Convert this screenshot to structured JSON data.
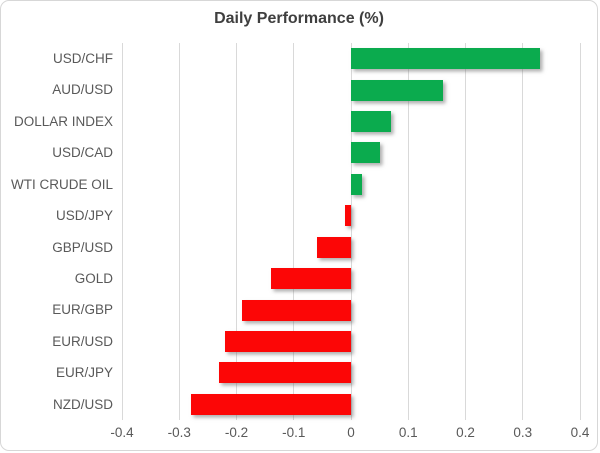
{
  "chart": {
    "title": "Daily Performance (%)"
  },
  "chart_data": {
    "type": "bar",
    "orientation": "horizontal",
    "title": "Daily Performance (%)",
    "categories": [
      "USD/CHF",
      "AUD/USD",
      "DOLLAR INDEX",
      "USD/CAD",
      "WTI CRUDE OIL",
      "USD/JPY",
      "GBP/USD",
      "GOLD",
      "EUR/GBP",
      "EUR/USD",
      "EUR/JPY",
      "NZD/USD"
    ],
    "values": [
      0.33,
      0.16,
      0.07,
      0.05,
      0.02,
      -0.01,
      -0.06,
      -0.14,
      -0.19,
      -0.22,
      -0.23,
      -0.28
    ],
    "series": [
      {
        "name": "Daily Performance (%)",
        "values": [
          0.33,
          0.16,
          0.07,
          0.05,
          0.02,
          -0.01,
          -0.06,
          -0.14,
          -0.19,
          -0.22,
          -0.23,
          -0.28
        ]
      }
    ],
    "xlabel": "",
    "ylabel": "",
    "xlim": [
      -0.4,
      0.4
    ],
    "x_ticks": [
      -0.4,
      -0.3,
      -0.2,
      -0.1,
      0,
      0.1,
      0.2,
      0.3,
      0.4
    ],
    "x_tick_labels": [
      "-0.4",
      "-0.3",
      "-0.2",
      "-0.1",
      "0",
      "0.1",
      "0.2",
      "0.3",
      "0.4"
    ],
    "grid": true,
    "legend": false,
    "colors": {
      "positive": "#0bab4e",
      "negative": "#fc0606",
      "gridline": "#d9d9d9",
      "axis_label": "#595959",
      "title": "#3f3f3f",
      "background": "#ffffff",
      "border": "#d7d7d7"
    }
  }
}
